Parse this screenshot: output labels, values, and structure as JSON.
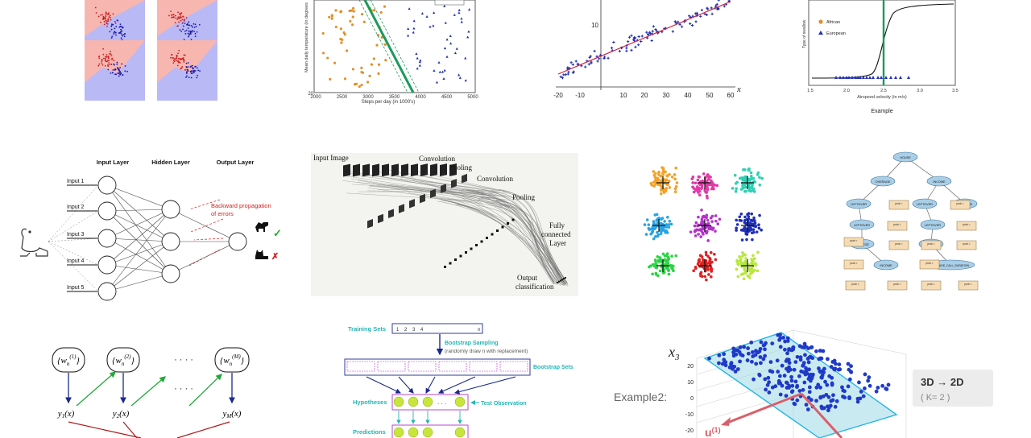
{
  "colors": {
    "red_region": "#f7b6b0",
    "blue_region": "#b9b9f6",
    "orange": "#e0902a",
    "blue": "#2233aa",
    "green_line": "#1a9a5a",
    "teal": "#23b5b5",
    "cluster_colors": [
      "#f2a22a",
      "#e23aa6",
      "#2fd0b4",
      "#27a4e6",
      "#b233c8",
      "#1f2fb8",
      "#27d640",
      "#e02020",
      "#b8e83a"
    ]
  },
  "svm_panel": {
    "xlabel": "Steps per day (in 1000's)",
    "ylabel": "Mean daily temperature (in degrees",
    "x_ticks": [
      "2000",
      "2500",
      "3000",
      "3500",
      "4000",
      "4500",
      "5000"
    ],
    "y_ticks": [
      "20"
    ]
  },
  "regression_panel": {
    "x_axis_symbol": "x",
    "x_ticks": [
      "-20",
      "-10",
      "10",
      "20",
      "30",
      "40",
      "50",
      "60"
    ],
    "y_ticks": [
      "10"
    ]
  },
  "logistic_panel": {
    "legend": [
      "African",
      "European"
    ],
    "ylabel": "Type of swallow",
    "xlabel": "Airspeed velocity (in m/s)",
    "x_ticks": [
      "1.5",
      "2.0",
      "2.5",
      "3.0",
      "3.5"
    ],
    "caption": "Example"
  },
  "nn_panel": {
    "layers": [
      "Input Layer",
      "Hidden Layer",
      "Output Layer"
    ],
    "inputs": [
      "Input 1",
      "Input 2",
      "Input 3",
      "Input 4",
      "Input 5"
    ],
    "backprop_line1": "Backward propagation",
    "backprop_line2": "of errors",
    "check_symbol": "✓",
    "cross_symbol": "✗"
  },
  "cnn_panel": {
    "input_image": "Input Image",
    "conv1": "Convolution",
    "pool1": "Pooling",
    "conv2": "Convolution",
    "pool2": "Pooling",
    "fc_line1": "Fully",
    "fc_line2": "connected",
    "fc_line3": "Layer",
    "output_line1": "Output",
    "output_line2": "classification"
  },
  "tree_panel": {
    "root": "HOUSE",
    "level1": [
      "OVERAGE",
      "INCOME"
    ],
    "level2": [
      "LEFTOVER",
      "OVERAGE"
    ],
    "level2_right": [
      "LEFTOVER",
      "OVERAGE"
    ],
    "level3": [
      "LEFTOVER",
      "OVERAGE"
    ],
    "level4": [
      "COLLEGE",
      "OVERAGE",
      "AVERAGE_CALL_DURATION"
    ],
    "level5": [
      "INCOME"
    ],
    "leaf_label": "prob ="
  },
  "ensemble_panel": {
    "weights": [
      "{w_n^{(1)}}",
      "{w_n^{(2)}}",
      "{w_n^{(M)}}"
    ],
    "w_prefix": "{w",
    "w_sub": "n",
    "w_sups": [
      "(1)",
      "(2)",
      "(M)"
    ],
    "ys": [
      "y",
      "y",
      "y"
    ],
    "y_subs": [
      "1",
      "2",
      "M"
    ],
    "y_suffix": "(x)",
    "dots": "· · · ·",
    "dots2": "· · · ·"
  },
  "bagging_panel": {
    "training_sets": "Training Sets",
    "bootstrap_sampling": "Bootstrap Sampling",
    "bootstrap_note": "(randomly draw n with replacement)",
    "bootstrap_sets": "Bootstrap Sets",
    "hypotheses": "Hypotheses",
    "test_observation": "Test Observation",
    "predictions": "Predictions",
    "cells": [
      "1",
      "2",
      "3",
      "4",
      "...",
      "n"
    ]
  },
  "pca_panel": {
    "example": "Example2:",
    "axis": "x",
    "axis_sub": "3",
    "z_ticks": [
      "20",
      "10",
      "0",
      "-10",
      "-20"
    ],
    "u_label": "u",
    "u_sup": "(1)",
    "badge_line1": "3D → 2D",
    "badge_line2": "( K= 2 )"
  }
}
